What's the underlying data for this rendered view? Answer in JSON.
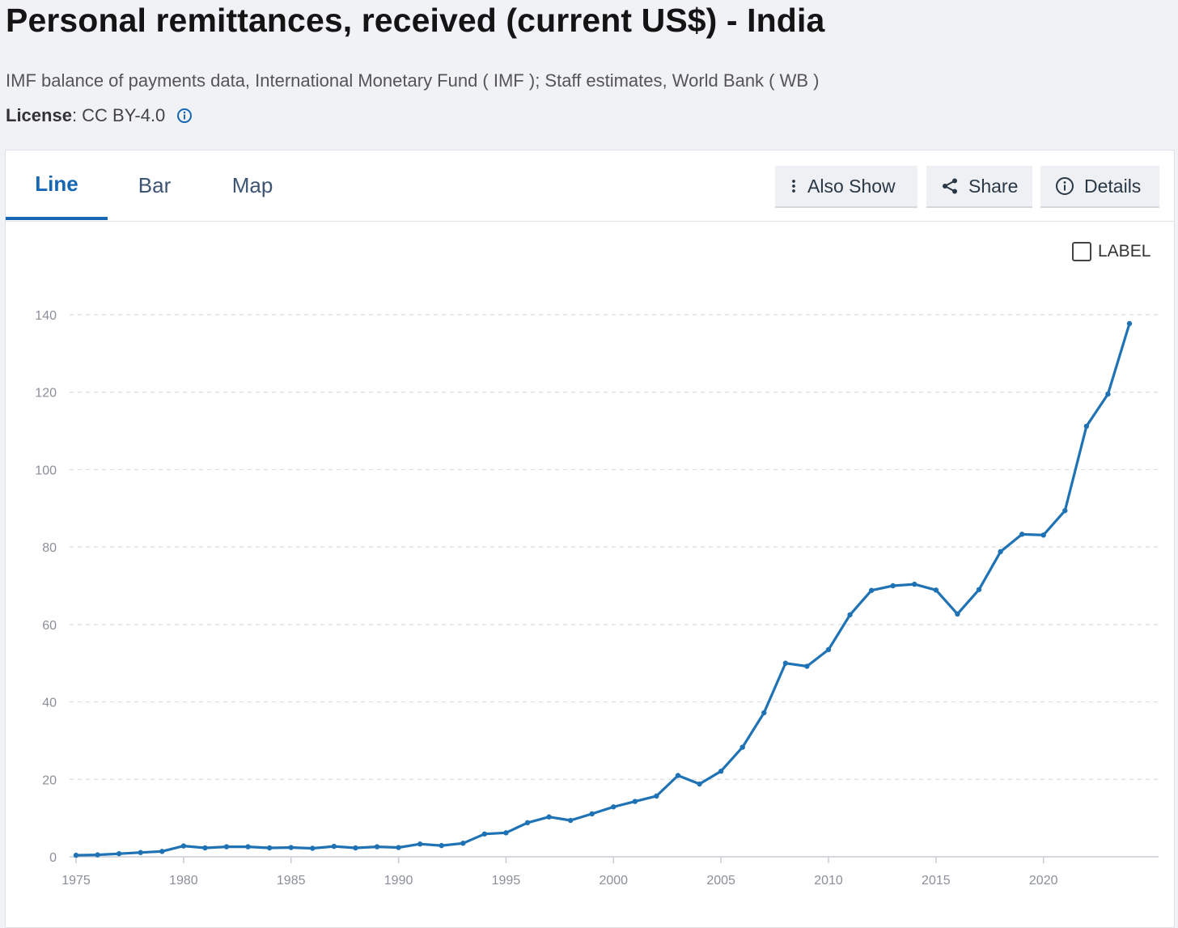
{
  "page": {
    "title": "Personal remittances, received (current US$) - India",
    "source": "IMF balance of payments data, International Monetary Fund ( IMF ); Staff estimates, World Bank ( WB )",
    "license_label": "License",
    "license_value": " : CC BY-4.0",
    "info_icon": "info-circle-icon"
  },
  "tabs": [
    {
      "label": "Line",
      "active": true
    },
    {
      "label": "Bar",
      "active": false
    },
    {
      "label": "Map",
      "active": false
    }
  ],
  "toolbar": {
    "also_show_label": "Also Show",
    "also_show_icon": "vertical-dots-icon",
    "share_label": "Share",
    "share_icon": "share-icon",
    "details_label": "Details",
    "details_icon": "info-circle-icon"
  },
  "label_toggle": {
    "text": "LABEL",
    "checked": false
  },
  "colors": {
    "accent": "#1766b3",
    "line": "#1f72b4",
    "grid": "#d9dce1",
    "tick": "#8a8f99"
  },
  "chart_data": {
    "type": "line",
    "title": "Personal remittances, received (current US$) - India",
    "xlabel": "",
    "ylabel": "",
    "xlim": [
      1975,
      2024
    ],
    "ylim": [
      0,
      140
    ],
    "x_ticks": [
      "1975",
      "1980",
      "1985",
      "1990",
      "1995",
      "2000",
      "2005",
      "2010",
      "2015",
      "2020"
    ],
    "y_ticks": [
      "0",
      "20",
      "40",
      "60",
      "80",
      "100",
      "120",
      "140"
    ],
    "grid": true,
    "series": [
      {
        "name": "India",
        "x": [
          1975,
          1976,
          1977,
          1978,
          1979,
          1980,
          1981,
          1982,
          1983,
          1984,
          1985,
          1986,
          1987,
          1988,
          1989,
          1990,
          1991,
          1992,
          1993,
          1994,
          1995,
          1996,
          1997,
          1998,
          1999,
          2000,
          2001,
          2002,
          2003,
          2004,
          2005,
          2006,
          2007,
          2008,
          2009,
          2010,
          2011,
          2012,
          2013,
          2014,
          2015,
          2016,
          2017,
          2018,
          2019,
          2020,
          2021,
          2022,
          2023,
          2024
        ],
        "values": [
          0.4,
          0.5,
          0.8,
          1.1,
          1.4,
          2.8,
          2.3,
          2.6,
          2.6,
          2.3,
          2.4,
          2.2,
          2.7,
          2.3,
          2.6,
          2.4,
          3.3,
          2.9,
          3.5,
          5.9,
          6.2,
          8.8,
          10.3,
          9.4,
          11.1,
          12.9,
          14.3,
          15.7,
          21.0,
          18.8,
          22.1,
          28.3,
          37.2,
          50.0,
          49.2,
          53.5,
          62.5,
          68.8,
          70.0,
          70.4,
          68.9,
          62.7,
          69.0,
          78.8,
          83.3,
          83.1,
          89.4,
          111.2,
          119.5,
          137.7
        ]
      }
    ]
  }
}
